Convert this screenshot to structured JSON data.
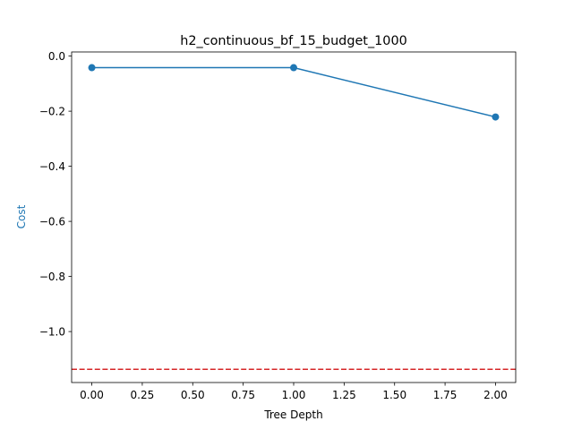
{
  "chart_data": {
    "type": "line",
    "title": "h2_continuous_bf_15_budget_1000",
    "xlabel": "Tree Depth",
    "ylabel": "Cost",
    "xlim": [
      -0.1,
      2.1
    ],
    "ylim": [
      -1.185,
      0.015
    ],
    "x_ticks": [
      0.0,
      0.25,
      0.5,
      0.75,
      1.0,
      1.25,
      1.5,
      1.75,
      2.0
    ],
    "x_tick_labels": [
      "0.00",
      "0.25",
      "0.50",
      "0.75",
      "1.00",
      "1.25",
      "1.50",
      "1.75",
      "2.00"
    ],
    "y_ticks": [
      0.0,
      -0.2,
      -0.4,
      -0.6,
      -0.8,
      -1.0
    ],
    "y_tick_labels": [
      "0.0",
      "−0.2",
      "−0.4",
      "−0.6",
      "−0.8",
      "−1.0"
    ],
    "series": [
      {
        "x": [
          0,
          1,
          2
        ],
        "y": [
          -0.042,
          -0.042,
          -0.221
        ],
        "color": "#1f77b4",
        "marker": "circle"
      }
    ],
    "reference_lines": [
      {
        "orientation": "horizontal",
        "y": -1.137,
        "color": "#d62728",
        "style": "dashed"
      }
    ],
    "grid": false,
    "ylabel_color": "#1f77b4"
  }
}
